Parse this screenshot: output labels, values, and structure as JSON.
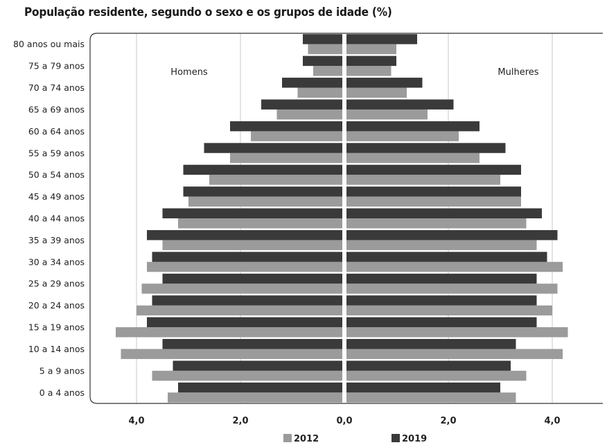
{
  "title": "População residente, segundo o sexo e os grupos de idade (%)",
  "colors": {
    "series_2012": "#9b9b9b",
    "series_2019": "#3a3a3a",
    "gridline": "#c8c8c8",
    "frame": "#333333",
    "center_line": "#ffffff"
  },
  "chart_data": {
    "type": "bar",
    "orientation": "horizontal",
    "subtype": "population-pyramid",
    "title": "População residente, segundo o sexo e os grupos de idade (%)",
    "categories": [
      "0 a 4 anos",
      "5 a 9 anos",
      "10 a 14 anos",
      "15 a 19 anos",
      "20 a 24 anos",
      "25 a 29 anos",
      "30 a 34 anos",
      "35 a 39 anos",
      "40 a 44 anos",
      "45 a 49 anos",
      "50 a 54 anos",
      "55 a 59 anos",
      "60 a 64 anos",
      "65 a 69 anos",
      "70 a 74 anos",
      "75 a 79 anos",
      "80 anos ou mais"
    ],
    "sides": [
      "Homens",
      "Mulheres"
    ],
    "series": [
      {
        "name": "2012",
        "homens": [
          3.4,
          3.7,
          4.3,
          4.4,
          4.0,
          3.9,
          3.8,
          3.5,
          3.2,
          3.0,
          2.6,
          2.2,
          1.8,
          1.3,
          0.9,
          0.6,
          0.7
        ],
        "mulheres": [
          3.3,
          3.5,
          4.2,
          4.3,
          4.0,
          4.1,
          4.2,
          3.7,
          3.5,
          3.4,
          3.0,
          2.6,
          2.2,
          1.6,
          1.2,
          0.9,
          1.0
        ]
      },
      {
        "name": "2019",
        "homens": [
          3.2,
          3.3,
          3.5,
          3.8,
          3.7,
          3.5,
          3.7,
          3.8,
          3.5,
          3.1,
          3.1,
          2.7,
          2.2,
          1.6,
          1.2,
          0.8,
          0.8
        ],
        "mulheres": [
          3.0,
          3.2,
          3.3,
          3.7,
          3.7,
          3.7,
          3.9,
          4.1,
          3.8,
          3.4,
          3.4,
          3.1,
          2.6,
          2.1,
          1.5,
          1.0,
          1.4
        ]
      }
    ],
    "xlim": [
      -4.5,
      4.5
    ],
    "xticks": [
      -4,
      -2,
      0,
      2,
      4
    ],
    "xtick_labels": [
      "4,0",
      "2,0",
      "0,0",
      "2,0",
      "4,0"
    ],
    "grid": true,
    "legend": {
      "position": "bottom",
      "entries": [
        "2012",
        "2019"
      ]
    }
  }
}
